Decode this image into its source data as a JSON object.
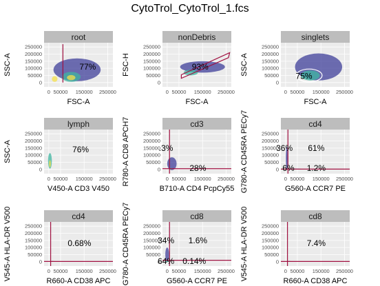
{
  "title": "CytoTrol_CytoTrol_1.fcs",
  "colors": {
    "panel_bg": "#ebebeb",
    "grid": "#ffffff",
    "strip_bg": "#bdbdbd",
    "gate": "#a01040",
    "density_low": "#3f3f9a",
    "density_mid": "#3fb6a0",
    "density_high": "#f5e04a",
    "density_peak": "#e0302a"
  },
  "chart_data": [
    {
      "type": "scatter",
      "strip": "root",
      "xlabel": "FSC-A",
      "ylabel": "SSC-A",
      "xticks": [
        "0",
        "50000",
        "150000",
        "250000"
      ],
      "xtick_values": [
        0,
        50000,
        150000,
        250000
      ],
      "yticks": [
        "0",
        "50000",
        "100000",
        "150000",
        "200000",
        "250000"
      ],
      "xlim": [
        -20000,
        272000
      ],
      "ylim": [
        -30000,
        280000
      ],
      "gate": {
        "kind": "polygon",
        "points": [
          [
            60000,
            0
          ],
          [
            60000,
            270000
          ]
        ]
      },
      "annotations": [
        {
          "text": "77%",
          "x": 165000,
          "y": 90000
        }
      ],
      "density": [
        {
          "x": 120000,
          "y": 90000,
          "rx": 100000,
          "ry": 80000,
          "level": "low"
        },
        {
          "x": 95000,
          "y": 40000,
          "rx": 40000,
          "ry": 35000,
          "level": "mid"
        },
        {
          "x": 95000,
          "y": 35000,
          "rx": 18000,
          "ry": 18000,
          "level": "high"
        },
        {
          "x": 25000,
          "y": 25000,
          "rx": 12000,
          "ry": 20000,
          "level": "high"
        }
      ]
    },
    {
      "type": "scatter",
      "strip": "nonDebris",
      "xlabel": "FSC-A",
      "ylabel": "FSC-H",
      "xticks": [
        "0",
        "50000",
        "150000",
        "250000"
      ],
      "xtick_values": [
        0,
        50000,
        150000,
        250000
      ],
      "yticks": [
        "0",
        "50000",
        "100000",
        "150000",
        "200000",
        "250000"
      ],
      "xlim": [
        -20000,
        272000
      ],
      "ylim": [
        -30000,
        280000
      ],
      "gate": {
        "kind": "polygon",
        "points": [
          [
            60000,
            30000
          ],
          [
            260000,
            175000
          ],
          [
            265000,
            210000
          ],
          [
            60000,
            55000
          ]
        ]
      },
      "annotations": [
        {
          "text": "93%",
          "x": 140000,
          "y": 90000
        }
      ],
      "density": [
        {
          "x": 150000,
          "y": 110000,
          "rx": 95000,
          "ry": 40000,
          "level": "low"
        },
        {
          "x": 100000,
          "y": 70000,
          "rx": 30000,
          "ry": 20000,
          "level": "mid"
        }
      ]
    },
    {
      "type": "scatter",
      "strip": "singlets",
      "xlabel": "FSC-A",
      "ylabel": "SSC-A",
      "xticks": [
        "0",
        "50000",
        "150000",
        "250000"
      ],
      "xtick_values": [
        0,
        50000,
        150000,
        250000
      ],
      "yticks": [
        "0",
        "50000",
        "100000",
        "150000",
        "200000",
        "250000"
      ],
      "xlim": [
        -20000,
        272000
      ],
      "ylim": [
        -30000,
        280000
      ],
      "gate": {
        "kind": "ellipse",
        "cx": 100000,
        "cy": 50000,
        "rx": 55000,
        "ry": 45000
      },
      "annotations": [
        {
          "text": "75%",
          "x": 78000,
          "y": 25000
        }
      ],
      "density": [
        {
          "x": 140000,
          "y": 110000,
          "rx": 100000,
          "ry": 95000,
          "level": "low"
        },
        {
          "x": 105000,
          "y": 50000,
          "rx": 40000,
          "ry": 35000,
          "level": "mid"
        }
      ]
    },
    {
      "type": "scatter",
      "strip": "lymph",
      "xlabel": "V450-A CD3 V450",
      "ylabel": "SSC-A",
      "xticks": [
        "0",
        "50000",
        "150000",
        "250000"
      ],
      "xtick_values": [
        0,
        50000,
        150000,
        250000
      ],
      "yticks": [
        "0",
        "50000",
        "100000",
        "150000",
        "200000",
        "250000"
      ],
      "xlim": [
        -20000,
        272000
      ],
      "ylim": [
        -30000,
        280000
      ],
      "gate": null,
      "annotations": [
        {
          "text": "76%",
          "x": 135000,
          "y": 120000
        }
      ],
      "density": [
        {
          "x": 5000,
          "y": 60000,
          "rx": 8000,
          "ry": 55000,
          "level": "mid"
        },
        {
          "x": 5000,
          "y": 40000,
          "rx": 4000,
          "ry": 25000,
          "level": "high"
        }
      ]
    },
    {
      "type": "scatter",
      "strip": "cd3",
      "xlabel": "B710-A CD4 PcpCy55",
      "ylabel": "R780-A CD8 APCH7",
      "xticks": [
        "0",
        "50000",
        "150000",
        "250000"
      ],
      "xtick_values": [
        0,
        50000,
        150000,
        250000
      ],
      "yticks": [
        "0",
        "50000",
        "100000",
        "150000",
        "200000",
        "250000"
      ],
      "xlim": [
        -20000,
        272000
      ],
      "ylim": [
        -30000,
        280000
      ],
      "gate": {
        "kind": "quad",
        "x": 10000,
        "y": 5000
      },
      "annotations": [
        {
          "text": ".3%",
          "x": -5000,
          "y": 130000
        },
        {
          "text": "28%",
          "x": 130000,
          "y": -10000
        }
      ],
      "density": [
        {
          "x": 20000,
          "y": 40000,
          "rx": 20000,
          "ry": 45000,
          "level": "low"
        },
        {
          "x": 15000,
          "y": 5000,
          "rx": 8000,
          "ry": 6000,
          "level": "mid"
        }
      ]
    },
    {
      "type": "scatter",
      "strip": "cd4",
      "xlabel": "G560-A CCR7 PE",
      "ylabel": "G780-A CD45RA PECy7",
      "xticks": [
        "0",
        "50000",
        "150000",
        "250000"
      ],
      "xtick_values": [
        0,
        50000,
        150000,
        250000
      ],
      "yticks": [
        "0",
        "50000",
        "100000",
        "150000",
        "200000",
        "250000"
      ],
      "xlim": [
        -20000,
        272000
      ],
      "ylim": [
        -30000,
        280000
      ],
      "gate": {
        "kind": "quad",
        "x": 10000,
        "y": 2000
      },
      "annotations": [
        {
          "text": "36%",
          "x": -5000,
          "y": 130000
        },
        {
          "text": "61%",
          "x": 130000,
          "y": 130000
        },
        {
          "text": "6%",
          "x": 12000,
          "y": -10000
        },
        {
          "text": "1.2%",
          "x": 130000,
          "y": -10000
        }
      ],
      "density": [
        {
          "x": 5000,
          "y": 80000,
          "rx": 4000,
          "ry": 80000,
          "level": "low"
        },
        {
          "x": 40000,
          "y": 2000,
          "rx": 40000,
          "ry": 3000,
          "level": "low"
        }
      ]
    },
    {
      "type": "scatter",
      "strip": "cd4",
      "xlabel": "R660-A CD38 APC",
      "ylabel": "V545-A HLA-DR V500",
      "xticks": [
        "0",
        "50000",
        "150000",
        "250000"
      ],
      "xtick_values": [
        0,
        50000,
        150000,
        250000
      ],
      "yticks": [
        "0",
        "50000",
        "100000",
        "150000",
        "200000",
        "250000"
      ],
      "xlim": [
        -20000,
        272000
      ],
      "ylim": [
        -30000,
        280000
      ],
      "gate": {
        "kind": "quad",
        "x": 8000,
        "y": 2000
      },
      "annotations": [
        {
          "text": "0.68%",
          "x": 130000,
          "y": 110000
        }
      ],
      "density": [
        {
          "x": 15000,
          "y": 2000,
          "rx": 12000,
          "ry": 3000,
          "level": "low"
        }
      ]
    },
    {
      "type": "scatter",
      "strip": "cd8",
      "xlabel": "G560-A CCR7 PE",
      "ylabel": "G780-A CD45RA PECy7",
      "xticks": [
        "0",
        "50000",
        "150000",
        "250000"
      ],
      "xtick_values": [
        0,
        50000,
        150000,
        250000
      ],
      "yticks": [
        "0",
        "50000",
        "100000",
        "150000",
        "200000",
        "250000"
      ],
      "xlim": [
        -20000,
        272000
      ],
      "ylim": [
        -30000,
        280000
      ],
      "gate": {
        "kind": "quad",
        "x": 10000,
        "y": 10000
      },
      "annotations": [
        {
          "text": "34%",
          "x": -5000,
          "y": 130000
        },
        {
          "text": "1.6%",
          "x": 130000,
          "y": 130000
        },
        {
          "text": "64%",
          "x": -5000,
          "y": -15000
        },
        {
          "text": "0.14%",
          "x": 115000,
          "y": -15000
        }
      ],
      "density": [
        {
          "x": 0,
          "y": 50000,
          "rx": 8000,
          "ry": 50000,
          "level": "low"
        },
        {
          "x": 0,
          "y": 5000,
          "rx": 6000,
          "ry": 8000,
          "level": "mid"
        }
      ]
    },
    {
      "type": "scatter",
      "strip": "cd8",
      "xlabel": "R660-A CD38 APC",
      "ylabel": "V545-A HLA-DR V500",
      "xticks": [
        "0",
        "50000",
        "150000",
        "250000"
      ],
      "xtick_values": [
        0,
        50000,
        150000,
        250000
      ],
      "yticks": [
        "0",
        "50000",
        "100000",
        "150000",
        "200000",
        "250000"
      ],
      "xlim": [
        -20000,
        272000
      ],
      "ylim": [
        -30000,
        280000
      ],
      "gate": {
        "kind": "quad",
        "x": 8000,
        "y": 2000
      },
      "annotations": [
        {
          "text": "7.4%",
          "x": 130000,
          "y": 110000
        }
      ],
      "density": [
        {
          "x": 15000,
          "y": 2000,
          "rx": 12000,
          "ry": 3000,
          "level": "low"
        }
      ]
    }
  ]
}
